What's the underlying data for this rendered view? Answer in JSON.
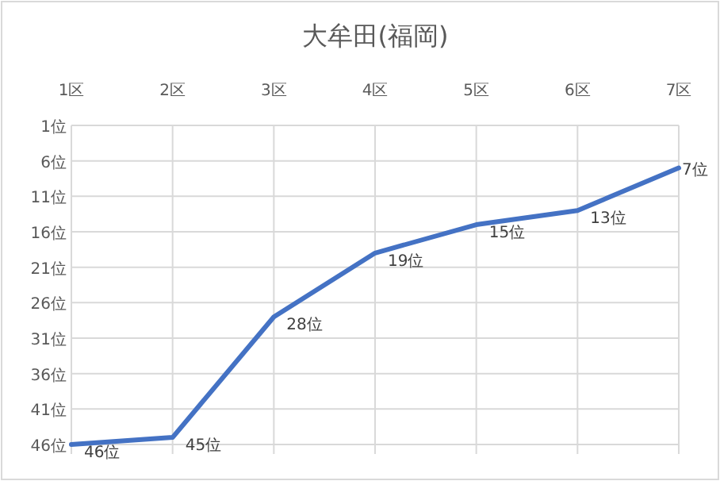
{
  "chart_data": {
    "type": "line",
    "title": "大牟田(福岡)",
    "categories": [
      "1区",
      "2区",
      "3区",
      "4区",
      "5区",
      "6区",
      "7区"
    ],
    "values": [
      46,
      45,
      28,
      19,
      15,
      13,
      7
    ],
    "value_labels": [
      "46位",
      "45位",
      "28位",
      "19位",
      "15位",
      "13位",
      "7位"
    ],
    "color": "#4472c4",
    "ylim": [
      46,
      1
    ],
    "yticks": [
      {
        "value": 1,
        "label": "1位"
      },
      {
        "value": 6,
        "label": "6位"
      },
      {
        "value": 11,
        "label": "11位"
      },
      {
        "value": 16,
        "label": "16位"
      },
      {
        "value": 21,
        "label": "21位"
      },
      {
        "value": 26,
        "label": "26位"
      },
      {
        "value": 31,
        "label": "31位"
      },
      {
        "value": 36,
        "label": "36位"
      },
      {
        "value": 41,
        "label": "41位"
      },
      {
        "value": 46,
        "label": "46位"
      }
    ],
    "grid": true
  }
}
